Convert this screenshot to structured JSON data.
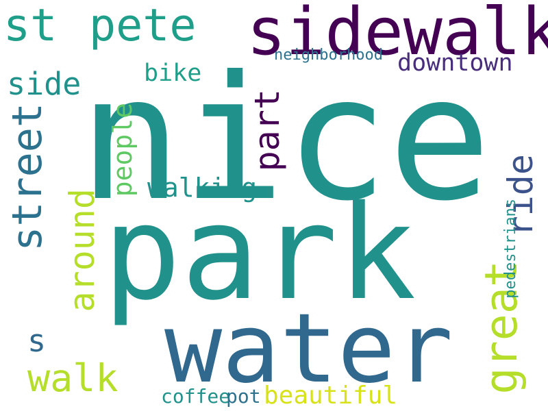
{
  "colors": {
    "background": "#ffffff",
    "palette": [
      "#440154",
      "#3b528b",
      "#21918c",
      "#5ec962",
      "#fde725"
    ]
  },
  "words": [
    {
      "t": "nice",
      "c": "#21918c"
    },
    {
      "t": "park",
      "c": "#21918c"
    },
    {
      "t": "water",
      "c": "#31688e"
    },
    {
      "t": "sidewalk",
      "c": "#440154"
    },
    {
      "t": "st",
      "c": "#1f9e89"
    },
    {
      "t": "pete",
      "c": "#1f9e89"
    },
    {
      "t": "street",
      "c": "#2c728e"
    },
    {
      "t": "walk",
      "c": "#b5de2b"
    },
    {
      "t": "great",
      "c": "#b5de2b"
    },
    {
      "t": "walking",
      "c": "#21918c"
    },
    {
      "t": "ride",
      "c": "#3b528b"
    },
    {
      "t": "downtown",
      "c": "#472d7b"
    },
    {
      "t": "side",
      "c": "#21918c"
    },
    {
      "t": "bike",
      "c": "#1f9e89"
    },
    {
      "t": "around",
      "c": "#b5de2b"
    },
    {
      "t": "people",
      "c": "#5ec962"
    },
    {
      "t": "part",
      "c": "#440154"
    },
    {
      "t": "beautiful",
      "c": "#d8e219"
    },
    {
      "t": "coffee",
      "c": "#21918c"
    },
    {
      "t": "pot",
      "c": "#2c728e"
    },
    {
      "t": "s",
      "c": "#31688e"
    },
    {
      "t": "neighborhood",
      "c": "#2c728e"
    },
    {
      "t": "pedestrians",
      "c": "#21918c"
    }
  ]
}
